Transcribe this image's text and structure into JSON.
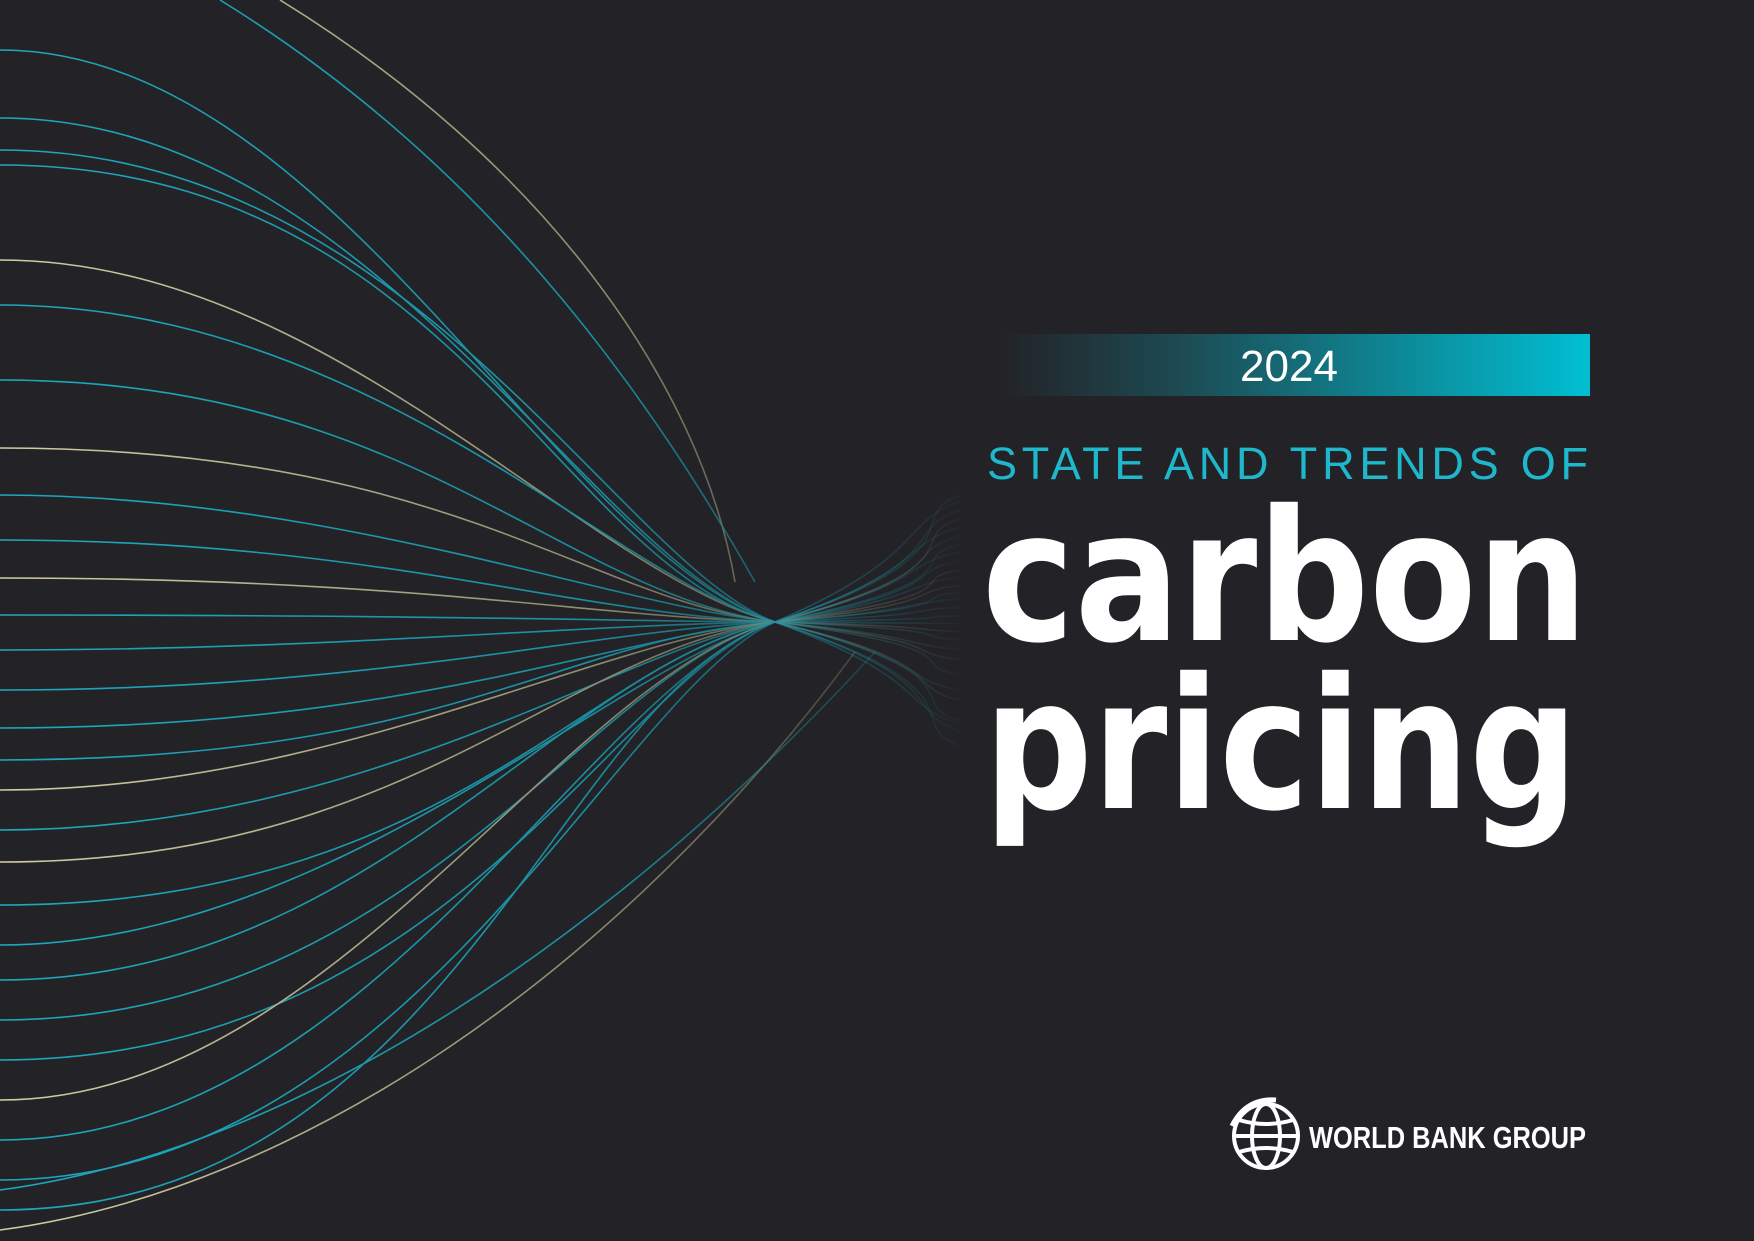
{
  "cover": {
    "year": "2024",
    "subtitle": "STATE AND TRENDS OF",
    "title_line1": "carbon",
    "title_line2": "pricing"
  },
  "logo": {
    "text": "WORLD BANK GROUP"
  }
}
